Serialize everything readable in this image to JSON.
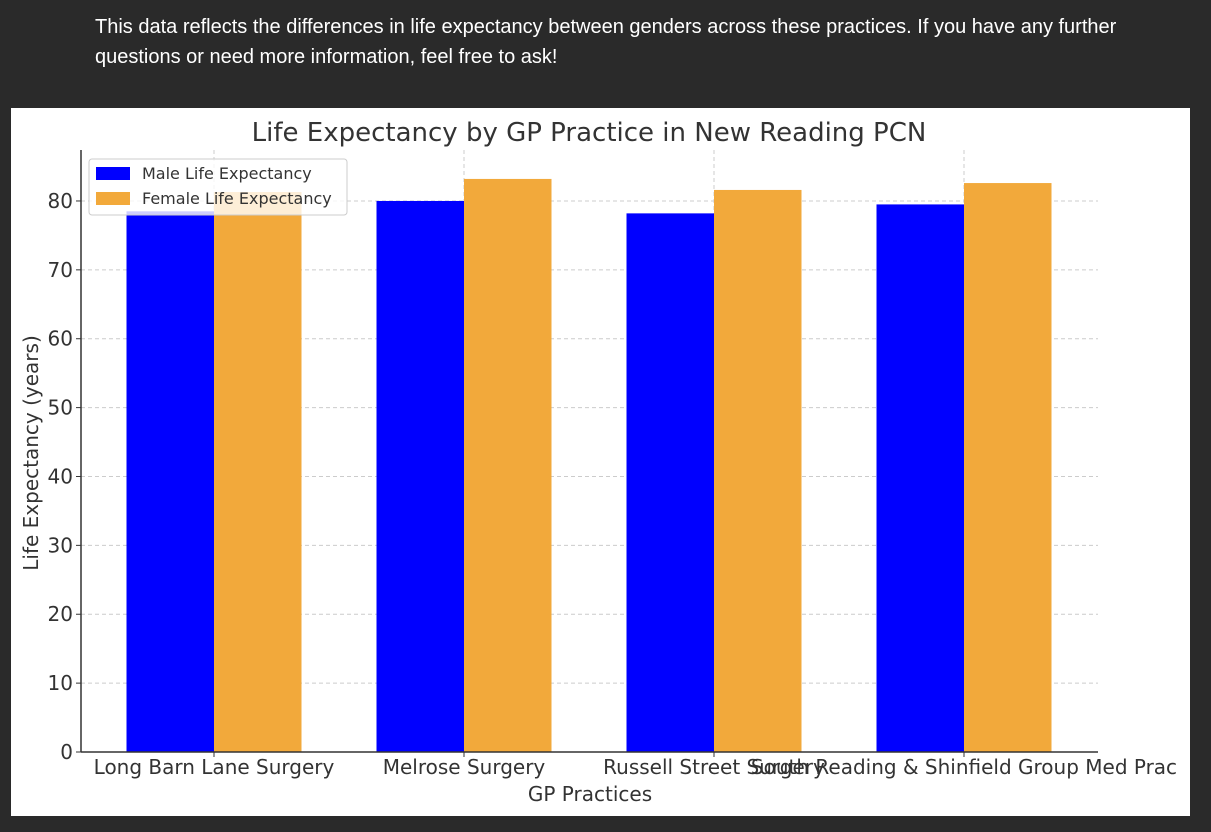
{
  "message": {
    "text": "This data reflects the differences in life expectancy between genders across these practices. If you have any further questions or need more information, feel free to ask!"
  },
  "chart_data": {
    "type": "bar",
    "title": "Life Expectancy by GP Practice in New Reading PCN",
    "xlabel": "GP Practices",
    "ylabel": "Life Expectancy (years)",
    "categories": [
      "Long Barn Lane Surgery",
      "Melrose Surgery",
      "Russell Street Surgery",
      "South Reading & Shinfield Group Med Prac"
    ],
    "series": [
      {
        "name": "Male Life Expectancy",
        "color": "#0000ff",
        "values": [
          78.5,
          80.0,
          78.2,
          79.5
        ]
      },
      {
        "name": "Female Life Expectancy",
        "color": "#f2a93b",
        "values": [
          81.3,
          83.2,
          81.6,
          82.6
        ]
      }
    ],
    "ylim": [
      0,
      87.4
    ],
    "yticks": [
      0,
      10,
      20,
      30,
      40,
      50,
      60,
      70,
      80
    ],
    "grid": true,
    "legend_position": "top-left"
  }
}
